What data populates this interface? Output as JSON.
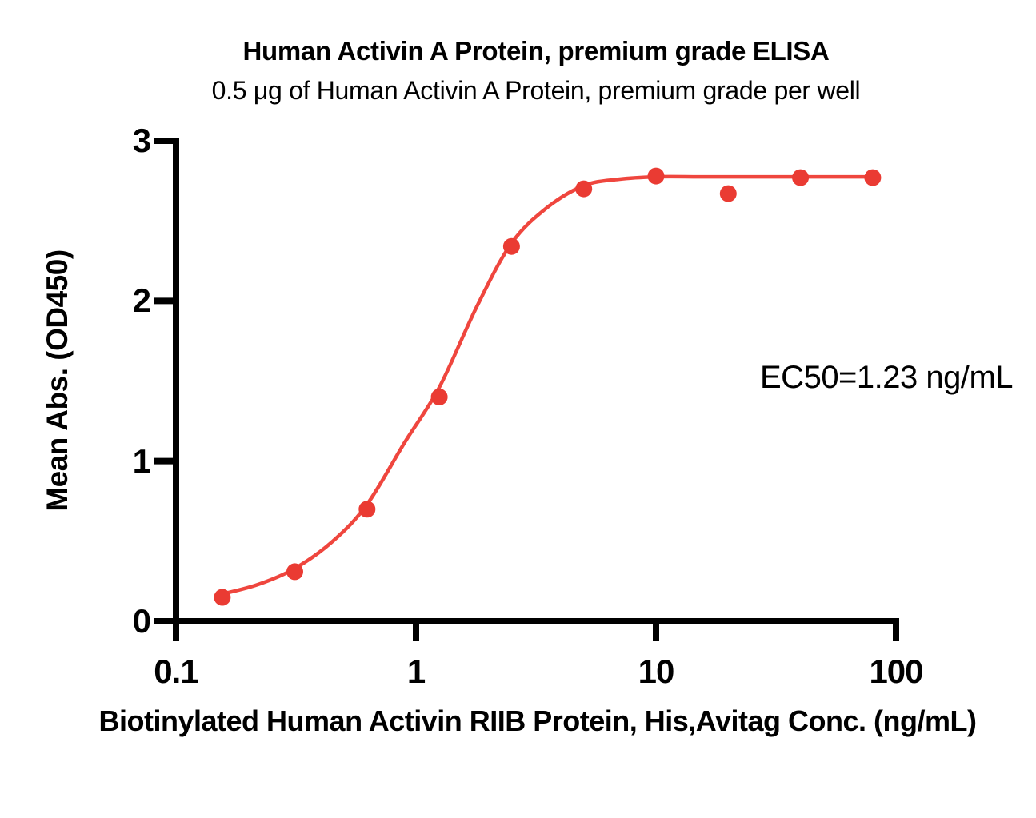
{
  "chart_data": {
    "type": "scatter",
    "title": "Human Activin A Protein, premium grade ELISA",
    "subtitle": "0.5 μg of Human Activin A Protein, premium grade per well",
    "xlabel": "Biotinylated Human Activin RIIB Protein, His,Avitag Conc. (ng/mL)",
    "ylabel": "Mean Abs. (OD450)",
    "annotation": "EC50=1.23 ng/mL",
    "ec50_ng_ml": 1.23,
    "x_scale": "log10",
    "xlim": [
      0.1,
      100
    ],
    "ylim": [
      0,
      3
    ],
    "x_ticks": [
      0.1,
      1,
      10,
      100
    ],
    "x_tick_labels": [
      "0.1",
      "1",
      "10",
      "100"
    ],
    "y_ticks": [
      0,
      1,
      2,
      3
    ],
    "y_tick_labels": [
      "0",
      "1",
      "2",
      "3"
    ],
    "grid": false,
    "legend": "none",
    "colors": {
      "marker": "#EA3B33",
      "line": "#EF463E",
      "axis": "#000000",
      "text": "#000000",
      "background": "#ffffff"
    },
    "series": [
      {
        "name": "Human Activin A Protein, premium grade",
        "x": [
          0.156,
          0.3125,
          0.625,
          1.25,
          2.5,
          5,
          10,
          20,
          40,
          80
        ],
        "y": [
          0.15,
          0.31,
          0.7,
          1.4,
          2.34,
          2.7,
          2.78,
          2.67,
          2.77,
          2.77
        ]
      }
    ],
    "fit_curve": {
      "x": [
        0.156,
        0.22,
        0.3125,
        0.45,
        0.625,
        0.9,
        1.25,
        1.8,
        2.5,
        3.5,
        5,
        7,
        10,
        15,
        20,
        40,
        80
      ],
      "y": [
        0.17,
        0.23,
        0.33,
        0.5,
        0.73,
        1.12,
        1.46,
        1.97,
        2.36,
        2.58,
        2.72,
        2.76,
        2.775,
        2.775,
        2.775,
        2.775,
        2.775
      ]
    }
  }
}
